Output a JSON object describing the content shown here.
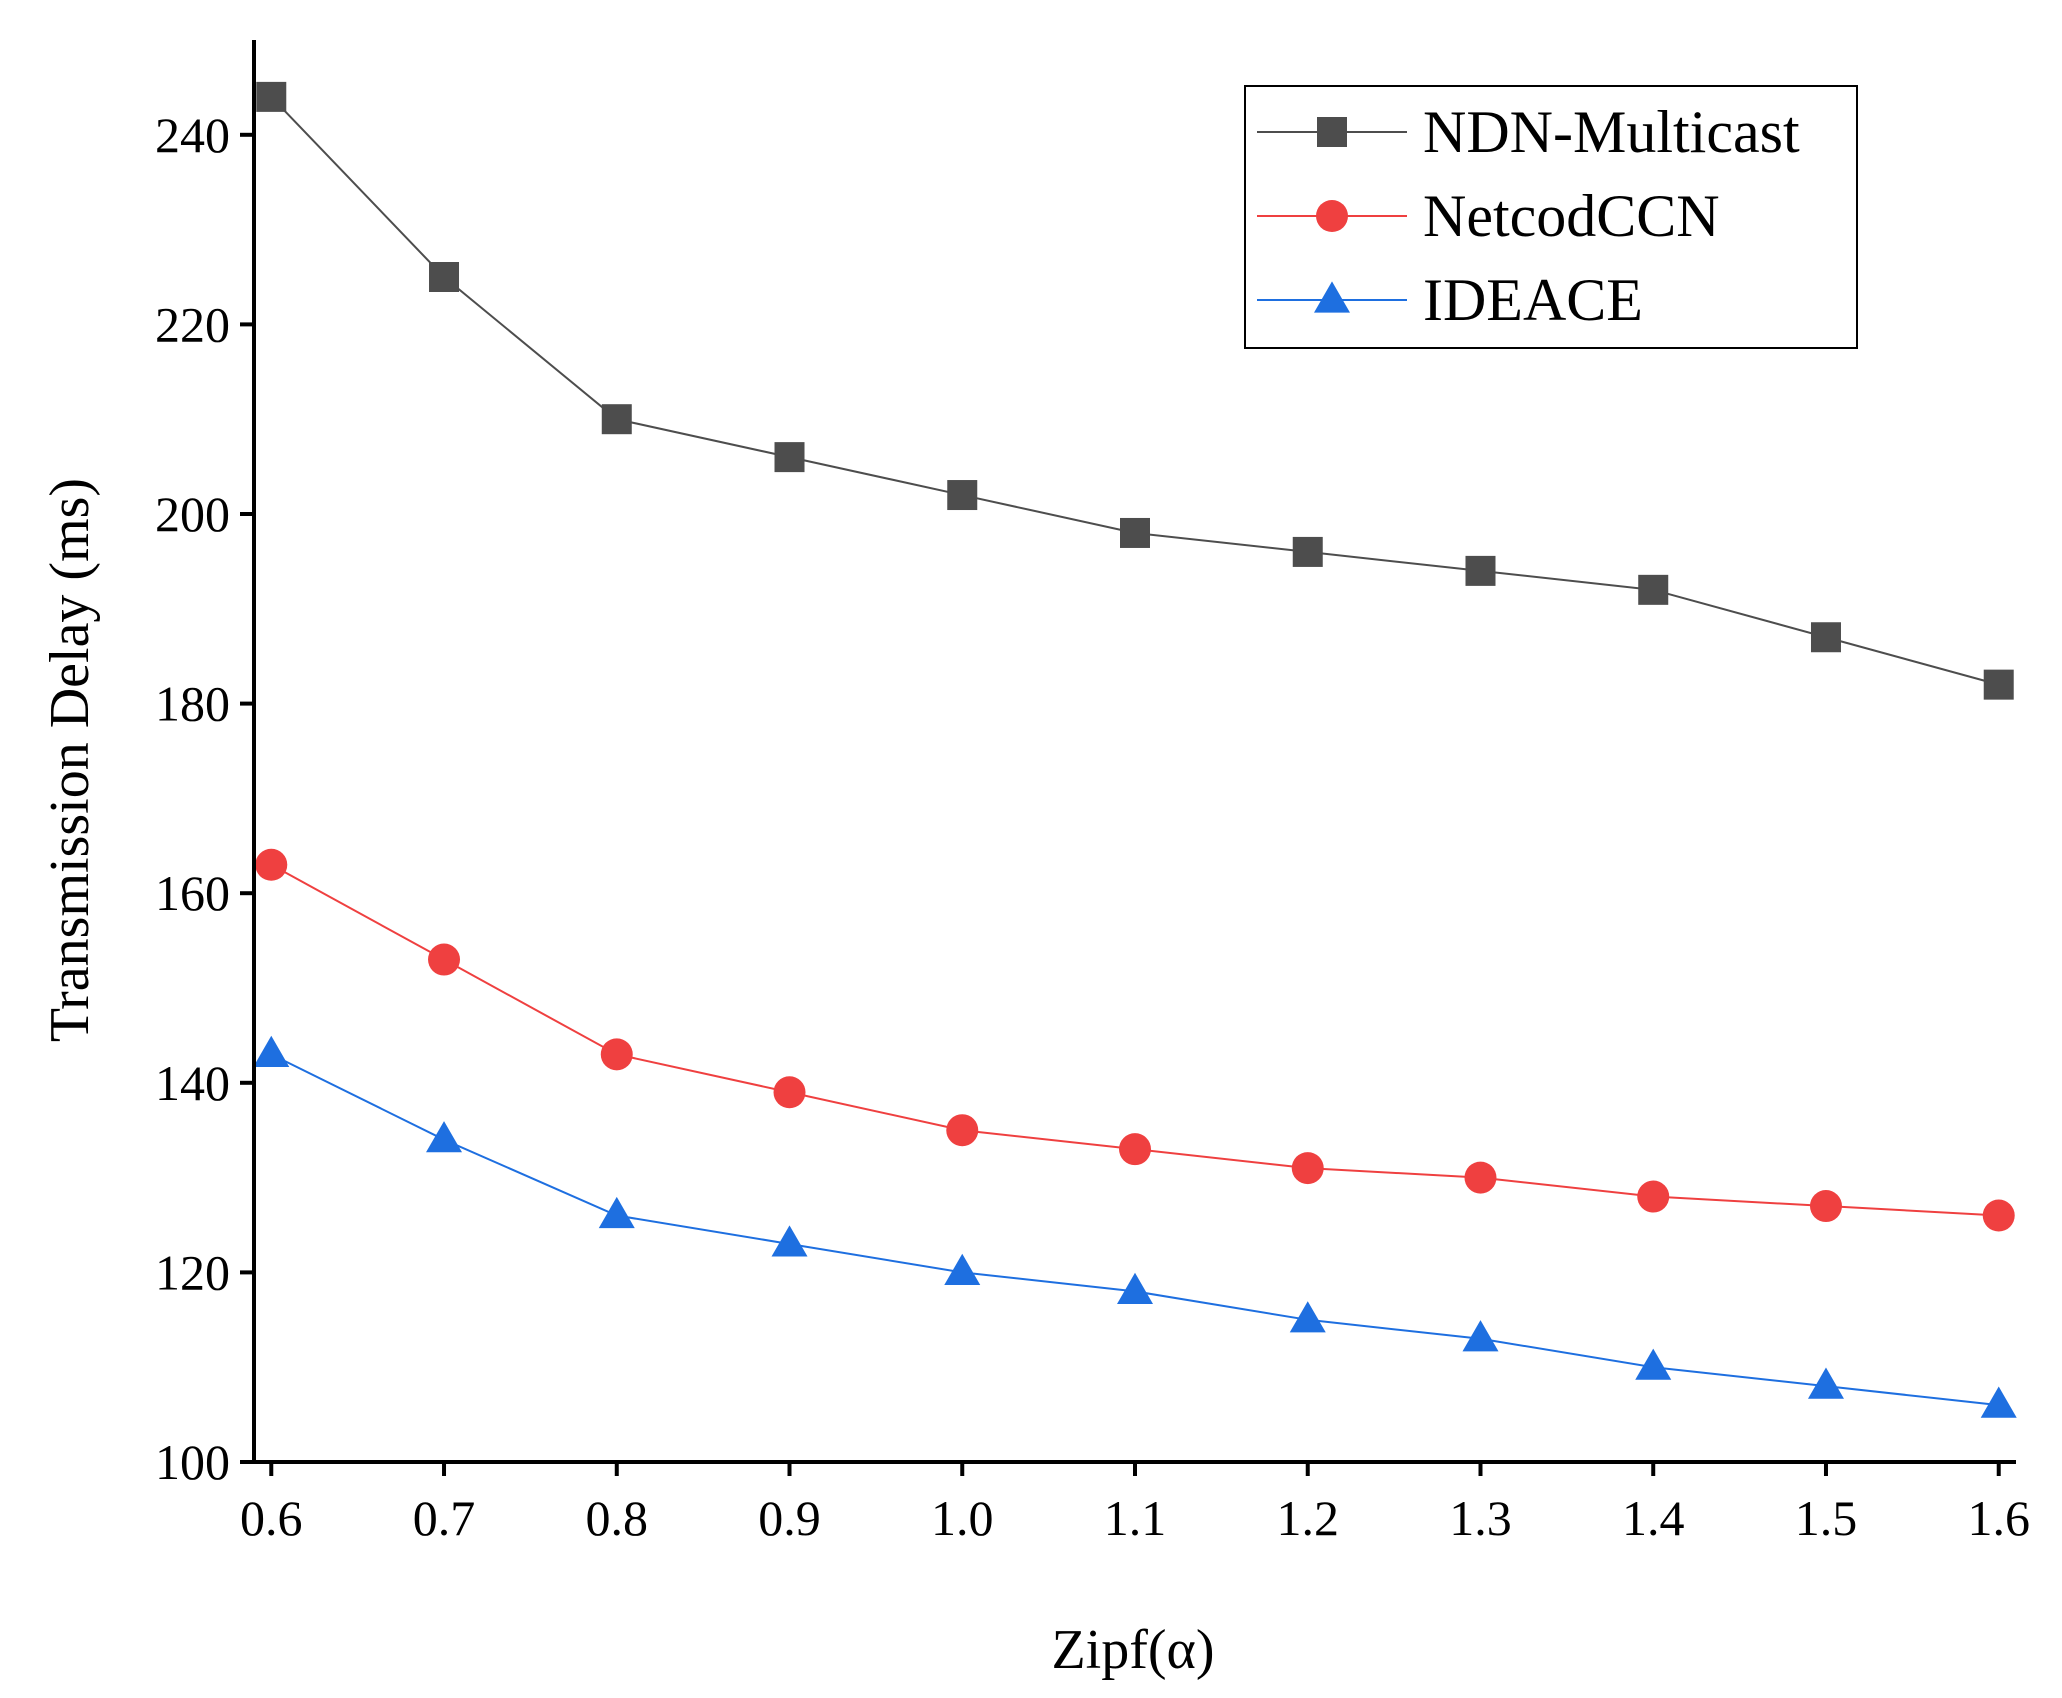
{
  "chart_data": {
    "type": "line",
    "title": "",
    "xlabel": "Zipf(α)",
    "ylabel": "Transmission Delay (ms)",
    "x": [
      0.6,
      0.7,
      0.8,
      0.9,
      1.0,
      1.1,
      1.2,
      1.3,
      1.4,
      1.5,
      1.6
    ],
    "xticks": [
      "0.6",
      "0.7",
      "0.8",
      "0.9",
      "1.0",
      "1.1",
      "1.2",
      "1.3",
      "1.4",
      "1.5",
      "1.6"
    ],
    "yticks": [
      100,
      120,
      140,
      160,
      180,
      200,
      220,
      240
    ],
    "xlim": [
      0.59,
      1.61
    ],
    "ylim": [
      100,
      250
    ],
    "grid": false,
    "legend_position": "top-right",
    "series": [
      {
        "name": "NDN-Multicast",
        "color": "#4d4d4d",
        "marker": "square",
        "values": [
          244,
          225,
          210,
          206,
          202,
          198,
          196,
          194,
          192,
          187,
          182
        ]
      },
      {
        "name": "NetcodCCN",
        "color": "#ef4040",
        "marker": "circle",
        "values": [
          163,
          153,
          143,
          139,
          135,
          133,
          131,
          130,
          128,
          127,
          126
        ]
      },
      {
        "name": "IDEACE",
        "color": "#1e6fe0",
        "marker": "triangle",
        "values": [
          143,
          134,
          126,
          123,
          120,
          118,
          115,
          113,
          110,
          108,
          106
        ]
      }
    ]
  }
}
